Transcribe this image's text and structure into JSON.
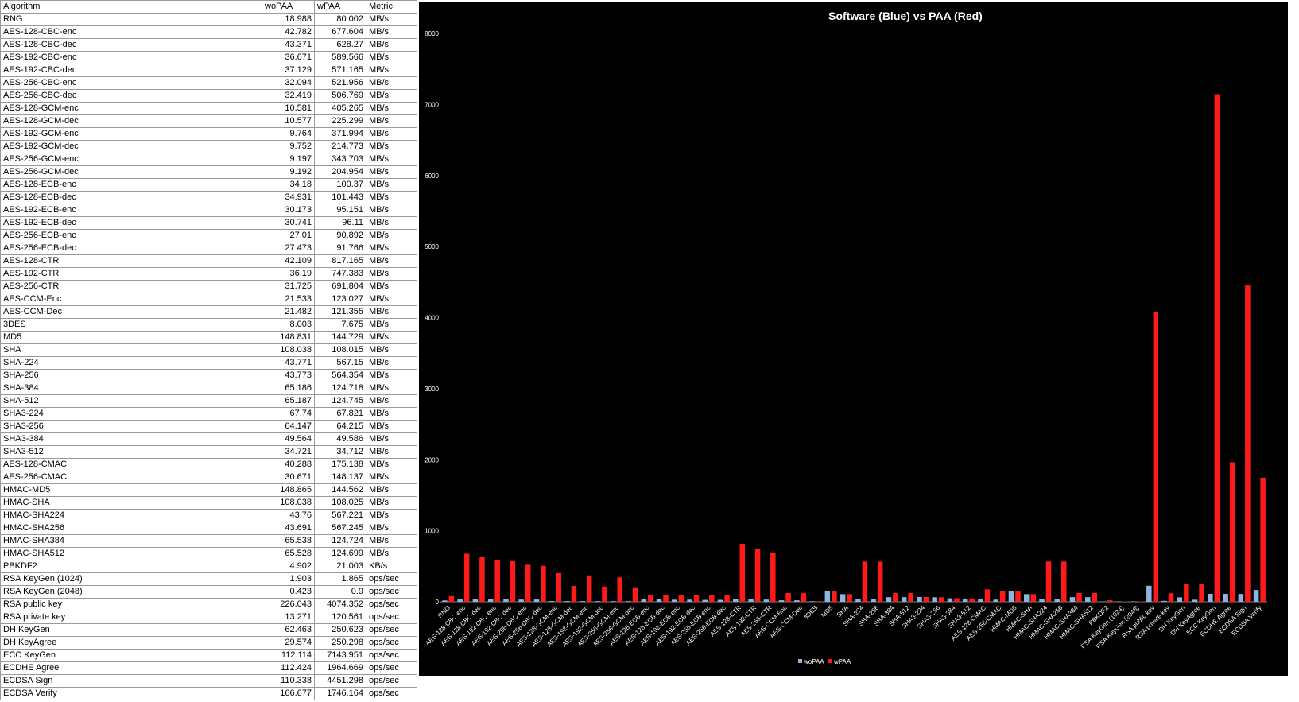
{
  "table": {
    "headers": [
      "Algorithm",
      "woPAA",
      "wPAA",
      "Metric"
    ],
    "rows": [
      [
        "RNG",
        "18.988",
        "80.002",
        "MB/s"
      ],
      [
        "AES-128-CBC-enc",
        "42.782",
        "677.604",
        "MB/s"
      ],
      [
        "AES-128-CBC-dec",
        "43.371",
        "628.27",
        "MB/s"
      ],
      [
        "AES-192-CBC-enc",
        "36.671",
        "589.566",
        "MB/s"
      ],
      [
        "AES-192-CBC-dec",
        "37.129",
        "571.165",
        "MB/s"
      ],
      [
        "AES-256-CBC-enc",
        "32.094",
        "521.956",
        "MB/s"
      ],
      [
        "AES-256-CBC-dec",
        "32.419",
        "506.769",
        "MB/s"
      ],
      [
        "AES-128-GCM-enc",
        "10.581",
        "405.265",
        "MB/s"
      ],
      [
        "AES-128-GCM-dec",
        "10.577",
        "225.299",
        "MB/s"
      ],
      [
        "AES-192-GCM-enc",
        "9.764",
        "371.994",
        "MB/s"
      ],
      [
        "AES-192-GCM-dec",
        "9.752",
        "214.773",
        "MB/s"
      ],
      [
        "AES-256-GCM-enc",
        "9.197",
        "343.703",
        "MB/s"
      ],
      [
        "AES-256-GCM-dec",
        "9.192",
        "204.954",
        "MB/s"
      ],
      [
        "AES-128-ECB-enc",
        "34.18",
        "100.37",
        "MB/s"
      ],
      [
        "AES-128-ECB-dec",
        "34.931",
        "101.443",
        "MB/s"
      ],
      [
        "AES-192-ECB-enc",
        "30.173",
        "95.151",
        "MB/s"
      ],
      [
        "AES-192-ECB-dec",
        "30.741",
        "96.11",
        "MB/s"
      ],
      [
        "AES-256-ECB-enc",
        "27.01",
        "90.892",
        "MB/s"
      ],
      [
        "AES-256-ECB-dec",
        "27.473",
        "91.766",
        "MB/s"
      ],
      [
        "AES-128-CTR",
        "42.109",
        "817.165",
        "MB/s"
      ],
      [
        "AES-192-CTR",
        "36.19",
        "747.383",
        "MB/s"
      ],
      [
        "AES-256-CTR",
        "31.725",
        "691.804",
        "MB/s"
      ],
      [
        "AES-CCM-Enc",
        "21.533",
        "123.027",
        "MB/s"
      ],
      [
        "AES-CCM-Dec",
        "21.482",
        "121.355",
        "MB/s"
      ],
      [
        "3DES",
        "8.003",
        "7.675",
        "MB/s"
      ],
      [
        "MD5",
        "148.831",
        "144.729",
        "MB/s"
      ],
      [
        "SHA",
        "108.038",
        "108.015",
        "MB/s"
      ],
      [
        "SHA-224",
        "43.771",
        "567.15",
        "MB/s"
      ],
      [
        "SHA-256",
        "43.773",
        "564.354",
        "MB/s"
      ],
      [
        "SHA-384",
        "65.186",
        "124.718",
        "MB/s"
      ],
      [
        "SHA-512",
        "65.187",
        "124.745",
        "MB/s"
      ],
      [
        "SHA3-224",
        "67.74",
        "67.821",
        "MB/s"
      ],
      [
        "SHA3-256",
        "64.147",
        "64.215",
        "MB/s"
      ],
      [
        "SHA3-384",
        "49.564",
        "49.586",
        "MB/s"
      ],
      [
        "SHA3-512",
        "34.721",
        "34.712",
        "MB/s"
      ],
      [
        "AES-128-CMAC",
        "40.288",
        "175.138",
        "MB/s"
      ],
      [
        "AES-256-CMAC",
        "30.671",
        "148.137",
        "MB/s"
      ],
      [
        "HMAC-MD5",
        "148.865",
        "144.562",
        "MB/s"
      ],
      [
        "HMAC-SHA",
        "108.038",
        "108.025",
        "MB/s"
      ],
      [
        "HMAC-SHA224",
        "43.76",
        "567.221",
        "MB/s"
      ],
      [
        "HMAC-SHA256",
        "43.691",
        "567.245",
        "MB/s"
      ],
      [
        "HMAC-SHA384",
        "65.538",
        "124.724",
        "MB/s"
      ],
      [
        "HMAC-SHA512",
        "65.528",
        "124.699",
        "MB/s"
      ],
      [
        "PBKDF2",
        "4.902",
        "21.003",
        "KB/s"
      ],
      [
        "RSA KeyGen (1024)",
        "1.903",
        "1.865",
        "ops/sec"
      ],
      [
        "RSA KeyGen (2048)",
        "0.423",
        "0.9",
        "ops/sec"
      ],
      [
        "RSA public key",
        "226.043",
        "4074.352",
        "ops/sec"
      ],
      [
        "RSA private key",
        "13.271",
        "120.561",
        "ops/sec"
      ],
      [
        "DH KeyGen",
        "62.463",
        "250.623",
        "ops/sec"
      ],
      [
        "DH KeyAgree",
        "29.574",
        "250.298",
        "ops/sec"
      ],
      [
        "ECC KeyGen",
        "112.114",
        "7143.951",
        "ops/sec"
      ],
      [
        "ECDHE Agree",
        "112.424",
        "1964.669",
        "ops/sec"
      ],
      [
        "ECDSA Sign",
        "110.338",
        "4451.298",
        "ops/sec"
      ],
      [
        "ECDSA Verify",
        "166.677",
        "1746.164",
        "ops/sec"
      ]
    ]
  },
  "chart_data": {
    "type": "bar",
    "title": "Software (Blue) vs PAA (Red)",
    "xlabel": "",
    "ylabel": "",
    "ylim": [
      0,
      8000
    ],
    "yticks": [
      0,
      1000,
      2000,
      3000,
      4000,
      5000,
      6000,
      7000,
      8000
    ],
    "grid": false,
    "legend_position": "bottom",
    "categories": [
      "RNG",
      "AES-128-CBC-enc",
      "AES-128-CBC-dec",
      "AES-192-CBC-enc",
      "AES-192-CBC-dec",
      "AES-256-CBC-enc",
      "AES-256-CBC-dec",
      "AES-128-GCM-enc",
      "AES-128-GCM-dec",
      "AES-192-GCM-enc",
      "AES-192-GCM-dec",
      "AES-256-GCM-enc",
      "AES-256-GCM-dec",
      "AES-128-ECB-enc",
      "AES-128-ECB-dec",
      "AES-192-ECB-enc",
      "AES-192-ECB-dec",
      "AES-256-ECB-enc",
      "AES-256-ECB-dec",
      "AES-128-CTR",
      "AES-192-CTR",
      "AES-256-CTR",
      "AES-CCM-Enc",
      "AES-CCM-Dec",
      "3DES",
      "MD5",
      "SHA",
      "SHA-224",
      "SHA-256",
      "SHA-384",
      "SHA-512",
      "SHA3-224",
      "SHA3-256",
      "SHA3-384",
      "SHA3-512",
      "AES-128-CMAC",
      "AES-256-CMAC",
      "HMAC-MD5",
      "HMAC-SHA",
      "HMAC-SHA224",
      "HMAC-SHA256",
      "HMAC-SHA384",
      "HMAC-SHA512",
      "PBKDF2",
      "RSA KeyGen (1024)",
      "RSA KeyGen (2048)",
      "RSA public key",
      "RSA private key",
      "DH KeyGen",
      "DH KeyAgree",
      "ECC KeyGen",
      "ECDHE Agree",
      "ECDSA Sign",
      "ECDSA Verify"
    ],
    "series": [
      {
        "name": "woPAA",
        "color": "#8db4e2",
        "values": [
          18.988,
          42.782,
          43.371,
          36.671,
          37.129,
          32.094,
          32.419,
          10.581,
          10.577,
          9.764,
          9.752,
          9.197,
          9.192,
          34.18,
          34.931,
          30.173,
          30.741,
          27.01,
          27.473,
          42.109,
          36.19,
          31.725,
          21.533,
          21.482,
          8.003,
          148.831,
          108.038,
          43.771,
          43.773,
          65.186,
          65.187,
          67.74,
          64.147,
          49.564,
          34.721,
          40.288,
          30.671,
          148.865,
          108.038,
          43.76,
          43.691,
          65.538,
          65.528,
          4.902,
          1.903,
          0.423,
          226.043,
          13.271,
          62.463,
          29.574,
          112.114,
          112.424,
          110.338,
          166.677
        ]
      },
      {
        "name": "wPAA",
        "color": "#ff1a1a",
        "values": [
          80.002,
          677.604,
          628.27,
          589.566,
          571.165,
          521.956,
          506.769,
          405.265,
          225.299,
          371.994,
          214.773,
          343.703,
          204.954,
          100.37,
          101.443,
          95.151,
          96.11,
          90.892,
          91.766,
          817.165,
          747.383,
          691.804,
          123.027,
          121.355,
          7.675,
          144.729,
          108.015,
          567.15,
          564.354,
          124.718,
          124.745,
          67.821,
          64.215,
          49.586,
          34.712,
          175.138,
          148.137,
          144.562,
          108.025,
          567.221,
          567.245,
          124.724,
          124.699,
          21.003,
          1.865,
          0.9,
          4074.352,
          120.561,
          250.623,
          250.298,
          7143.951,
          1964.669,
          4451.298,
          1746.164
        ]
      }
    ],
    "background": "#000000",
    "text_color": "#ffffff"
  }
}
